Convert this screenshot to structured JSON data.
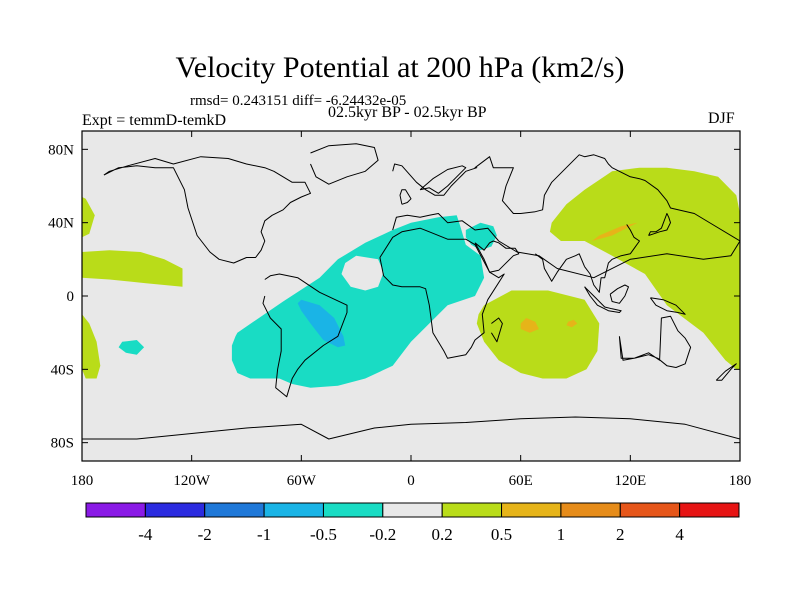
{
  "chart_data": {
    "type": "heatmap",
    "title": "Velocity Potential at 200 hPa (km2/s)",
    "subtitle_stats": "rmsd= 0.243151 diff= -6.24432e-05",
    "experiment": "Expt = temmD-temkD",
    "period": "02.5kyr BP - 02.5kyr BP",
    "season": "DJF",
    "x_ticks": [
      {
        "value": -180,
        "label": "180"
      },
      {
        "value": -120,
        "label": "120W"
      },
      {
        "value": -60,
        "label": "60W"
      },
      {
        "value": 0,
        "label": "0"
      },
      {
        "value": 60,
        "label": "60E"
      },
      {
        "value": 120,
        "label": "120E"
      },
      {
        "value": 180,
        "label": "180"
      }
    ],
    "y_ticks": [
      {
        "value": 80,
        "label": "80N"
      },
      {
        "value": 40,
        "label": "40N"
      },
      {
        "value": 0,
        "label": "0"
      },
      {
        "value": -40,
        "label": "40S"
      },
      {
        "value": -80,
        "label": "80S"
      }
    ],
    "xlim": [
      -180,
      180
    ],
    "ylim": [
      -90,
      90
    ],
    "colorbar": {
      "colors": [
        "#8a1ae6",
        "#2b2be0",
        "#1f78d8",
        "#1ab4e6",
        "#19dcc4",
        "#e8e8e8",
        "#b9dc19",
        "#e6b419",
        "#e68c1a",
        "#e6561a",
        "#e61414"
      ],
      "levels": [
        "-4",
        "-2",
        "-1",
        "-0.5",
        "-0.2",
        "0.2",
        "0.5",
        "1",
        "2",
        "4"
      ]
    },
    "regions": [
      {
        "name": "central-atlantic-negative",
        "class": "-0.5 to -0.2",
        "color": "#19dcc4",
        "lons": [
          -95,
          -70,
          -50,
          -40,
          -25,
          -10,
          0,
          15,
          25,
          27,
          30,
          38,
          40,
          35,
          20,
          10,
          0,
          -10,
          -25,
          -40,
          -55,
          -65,
          -72,
          -80,
          -88,
          -95,
          -98,
          -98,
          -96
        ],
        "lats": [
          -20,
          -3,
          10,
          20,
          29,
          36,
          40,
          43,
          44,
          38,
          28,
          22,
          10,
          0,
          -5,
          -15,
          -25,
          -38,
          -45,
          -49,
          -50,
          -48,
          -45,
          -45,
          -45,
          -42,
          -35,
          -27,
          -22
        ]
      },
      {
        "name": "south-america-core-negative",
        "class": "-1 to -0.5",
        "color": "#1ab4e6",
        "lons": [
          -60,
          -50,
          -42,
          -37,
          -36,
          -40,
          -48,
          -55,
          -60,
          -62
        ],
        "lats": [
          -2,
          -5,
          -12,
          -22,
          -27,
          -28,
          -24,
          -15,
          -8,
          -4
        ]
      },
      {
        "name": "southeast-pacific-negative",
        "class": "-0.5 to -0.2",
        "color": "#19dcc4",
        "lons": [
          -158,
          -150,
          -146,
          -150,
          -156,
          -160
        ],
        "lats": [
          -25,
          -24,
          -28,
          -32,
          -31,
          -28
        ]
      },
      {
        "name": "red-sea-negative",
        "class": "-0.5 to -0.2",
        "color": "#19dcc4",
        "lons": [
          30,
          38,
          45,
          47,
          44,
          38,
          33,
          30
        ],
        "lats": [
          36,
          40,
          38,
          33,
          27,
          25,
          28,
          32
        ]
      },
      {
        "name": "asia-pacific-positive",
        "class": "0.2 to 0.5",
        "color": "#b9dc19",
        "lons": [
          77,
          85,
          95,
          110,
          125,
          140,
          155,
          168,
          178,
          180,
          180,
          178,
          172,
          160,
          140,
          128,
          110,
          95,
          82,
          76
        ],
        "lats": [
          40,
          50,
          58,
          68,
          70,
          70,
          68,
          65,
          55,
          45,
          -40,
          -40,
          -35,
          -20,
          -5,
          12,
          22,
          30,
          30,
          35
        ]
      },
      {
        "name": "indian-ocean-positive",
        "class": "0.2 to 0.5",
        "color": "#b9dc19",
        "lons": [
          37,
          40,
          55,
          75,
          95,
          103,
          102,
          96,
          85,
          72,
          60,
          48,
          40,
          36
        ],
        "lats": [
          -10,
          -5,
          3,
          3,
          -2,
          -15,
          -30,
          -40,
          -45,
          -45,
          -42,
          -35,
          -25,
          -15
        ]
      },
      {
        "name": "east-pacific-positive",
        "class": "0.2 to 0.5",
        "color": "#b9dc19",
        "lons": [
          -180,
          -165,
          -148,
          -135,
          -125,
          -125,
          -145,
          -165,
          -180
        ],
        "lats": [
          24,
          25,
          24,
          20,
          15,
          5,
          7,
          9,
          10
        ]
      },
      {
        "name": "dateline-south-positive",
        "class": "0.2 to 0.5",
        "color": "#b9dc19",
        "lons": [
          -180,
          -176,
          -172,
          -170,
          -172,
          -178,
          -180
        ],
        "lats": [
          -10,
          -15,
          -25,
          -38,
          -45,
          -45,
          -40
        ]
      },
      {
        "name": "dateline-north-positive",
        "class": "0.2 to 0.5",
        "color": "#b9dc19",
        "lons": [
          -180,
          -178,
          -173,
          -176,
          -180
        ],
        "lats": [
          54,
          53,
          44,
          34,
          32
        ]
      },
      {
        "name": "china-core-positive",
        "class": "0.5 to 1",
        "color": "#e6b419",
        "lons": [
          99,
          110,
          120,
          124,
          115,
          103
        ],
        "lats": [
          30,
          33,
          38,
          40,
          38,
          33
        ]
      },
      {
        "name": "madagascar-core-positive",
        "class": "0.5 to 1",
        "color": "#e6b419",
        "lons": [
          60,
          63,
          68,
          70,
          65,
          60
        ],
        "lats": [
          -15,
          -12,
          -14,
          -18,
          -20,
          -18
        ]
      },
      {
        "name": "indian-core-positive",
        "class": "0.5 to 1",
        "color": "#e6b419",
        "lons": [
          86,
          89,
          91,
          88,
          85
        ],
        "lats": [
          -14,
          -13,
          -15,
          -17,
          -16
        ]
      },
      {
        "name": "atlantic-hole",
        "class": "-0.2 to 0.2",
        "color": "#e8e8e8",
        "lons": [
          -36,
          -30,
          -18,
          -15,
          -18,
          -25,
          -33,
          -38
        ],
        "lats": [
          18,
          22,
          20,
          13,
          5,
          3,
          5,
          12
        ]
      }
    ],
    "coastlines": [
      {
        "name": "north-america",
        "lons": [
          -168,
          -160,
          -150,
          -140,
          -130,
          -124,
          -122,
          -117,
          -110,
          -105,
          -97,
          -90,
          -85,
          -82,
          -80,
          -82,
          -80,
          -76,
          -70,
          -66,
          -60,
          -55,
          -58,
          -65,
          -75,
          -80,
          -90,
          -100,
          -115,
          -130,
          -140,
          -155,
          -165,
          -168
        ],
        "lats": [
          66,
          70,
          71,
          70,
          70,
          58,
          48,
          33,
          24,
          20,
          18,
          21,
          21,
          25,
          30,
          35,
          41,
          44,
          47,
          51,
          54,
          56,
          62,
          62,
          68,
          70,
          72,
          75,
          76,
          72,
          75,
          71,
          68,
          66
        ]
      },
      {
        "name": "south-america",
        "lons": [
          -80,
          -77,
          -72,
          -62,
          -50,
          -35,
          -35,
          -40,
          -48,
          -58,
          -62,
          -65,
          -68,
          -74,
          -73,
          -71,
          -71,
          -77,
          -81,
          -80
        ],
        "lats": [
          9,
          11,
          12,
          10,
          2,
          -5,
          -9,
          -22,
          -27,
          -35,
          -40,
          -45,
          -55,
          -50,
          -40,
          -30,
          -18,
          -12,
          -4,
          0
        ]
      },
      {
        "name": "greenland",
        "lons": [
          -55,
          -45,
          -30,
          -20,
          -18,
          -25,
          -35,
          -45,
          -52,
          -55
        ],
        "lats": [
          78,
          82,
          83,
          81,
          74,
          68,
          65,
          61,
          65,
          72
        ]
      },
      {
        "name": "africa",
        "lons": [
          -17,
          -10,
          -5,
          5,
          10,
          20,
          30,
          35,
          43,
          48,
          51,
          42,
          39,
          40,
          35,
          33,
          30,
          20,
          18,
          12,
          10,
          8,
          5,
          -5,
          -10,
          -15,
          -17
        ],
        "lats": [
          21,
          32,
          35,
          37,
          35,
          31,
          31,
          28,
          13,
          10,
          12,
          -2,
          -10,
          -20,
          -24,
          -28,
          -32,
          -34,
          -30,
          -20,
          -5,
          4,
          5,
          5,
          6,
          11,
          21
        ]
      },
      {
        "name": "madagascar",
        "lons": [
          44,
          48,
          50,
          47,
          44
        ],
        "lats": [
          -15,
          -12,
          -15,
          -25,
          -20
        ]
      },
      {
        "name": "eurasia",
        "lons": [
          -10,
          -8,
          -2,
          5,
          10,
          15,
          20,
          28,
          35,
          42,
          48,
          58,
          70,
          80,
          100,
          120,
          140,
          160,
          175,
          180,
          165,
          155,
          142,
          140,
          135,
          128,
          125,
          120,
          110,
          108,
          106,
          100,
          95,
          92,
          88,
          80,
          77,
          73,
          72,
          68,
          60,
          56,
          50,
          52,
          56,
          45,
          43,
          35,
          36,
          30,
          28,
          26,
          22,
          18,
          13,
          8,
          3,
          -5,
          -9,
          -10
        ],
        "lats": [
          36,
          43,
          44,
          43,
          44,
          45,
          40,
          41,
          36,
          37,
          30,
          24,
          22,
          15,
          10,
          20,
          23,
          20,
          22,
          30,
          39,
          45,
          48,
          52,
          58,
          63,
          64,
          65,
          70,
          72,
          75,
          77,
          76,
          77,
          73,
          65,
          62,
          55,
          47,
          46,
          45,
          45,
          52,
          60,
          70,
          70,
          76,
          70,
          70,
          68,
          66,
          64,
          60,
          55,
          55,
          58,
          62,
          71,
          72,
          68
        ]
      },
      {
        "name": "arabia",
        "lons": [
          35,
          40,
          43,
          48,
          51,
          56,
          59,
          57,
          52,
          48,
          45,
          43,
          40,
          35
        ],
        "lats": [
          29,
          20,
          13,
          14,
          17,
          22,
          23,
          26,
          26,
          29,
          30,
          29,
          25,
          29
        ]
      },
      {
        "name": "india",
        "lons": [
          68,
          72,
          73,
          77,
          80,
          85,
          90,
          92,
          95
        ],
        "lats": [
          23,
          20,
          15,
          8,
          13,
          20,
          22,
          23,
          16
        ]
      },
      {
        "name": "se-asia",
        "lons": [
          95,
          98,
          100,
          103,
          104,
          106,
          108,
          110,
          115,
          120,
          125,
          122,
          120,
          118
        ],
        "lats": [
          16,
          12,
          6,
          2,
          10,
          10,
          18,
          20,
          22,
          23,
          30,
          32,
          36,
          39
        ]
      },
      {
        "name": "australia",
        "lons": [
          114,
          116,
          122,
          130,
          136,
          137,
          142,
          146,
          150,
          153,
          150,
          145,
          140,
          135,
          130,
          122,
          115,
          114
        ],
        "lats": [
          -22,
          -35,
          -34,
          -31,
          -35,
          -12,
          -11,
          -19,
          -23,
          -28,
          -37,
          -39,
          -38,
          -34,
          -32,
          -34,
          -34,
          -22
        ]
      },
      {
        "name": "japan",
        "lons": [
          130,
          133,
          136,
          140,
          142,
          141,
          140,
          137,
          134,
          131,
          130
        ],
        "lats": [
          33,
          34,
          35,
          36,
          40,
          43,
          45,
          37,
          35,
          35,
          33
        ]
      },
      {
        "name": "borneo",
        "lons": [
          109,
          113,
          117,
          119,
          117,
          114,
          110,
          109
        ],
        "lats": [
          1,
          4,
          6,
          5,
          0,
          -4,
          -3,
          1
        ]
      },
      {
        "name": "sumatra-java",
        "lons": [
          95,
          100,
          106,
          110,
          115,
          114,
          108,
          102,
          98,
          95
        ],
        "lats": [
          5,
          0,
          -6,
          -7,
          -8,
          -9,
          -8,
          -5,
          0,
          5
        ]
      },
      {
        "name": "new-guinea",
        "lons": [
          131,
          138,
          145,
          150,
          146,
          140,
          134,
          131
        ],
        "lats": [
          -1,
          -2,
          -5,
          -10,
          -9,
          -8,
          -5,
          -1
        ]
      },
      {
        "name": "new-zealand",
        "lons": [
          167,
          172,
          178,
          175,
          170,
          167
        ],
        "lats": [
          -46,
          -41,
          -37,
          -40,
          -46,
          -46
        ]
      },
      {
        "name": "uk",
        "lons": [
          -5,
          -2,
          0,
          -3,
          -5,
          -6,
          -5
        ],
        "lats": [
          50,
          51,
          53,
          58,
          58,
          55,
          50
        ]
      },
      {
        "name": "scandinavia",
        "lons": [
          5,
          10,
          15,
          20,
          25,
          30,
          28,
          20,
          12,
          5
        ],
        "lats": [
          58,
          59,
          56,
          60,
          65,
          70,
          71,
          69,
          64,
          58
        ]
      },
      {
        "name": "antarctica",
        "lons": [
          -180,
          -150,
          -120,
          -90,
          -60,
          -45,
          -20,
          0,
          30,
          60,
          90,
          120,
          150,
          180
        ],
        "lats": [
          -78,
          -78,
          -75,
          -72,
          -70,
          -78,
          -72,
          -70,
          -69,
          -67,
          -66,
          -67,
          -70,
          -78
        ]
      }
    ]
  }
}
